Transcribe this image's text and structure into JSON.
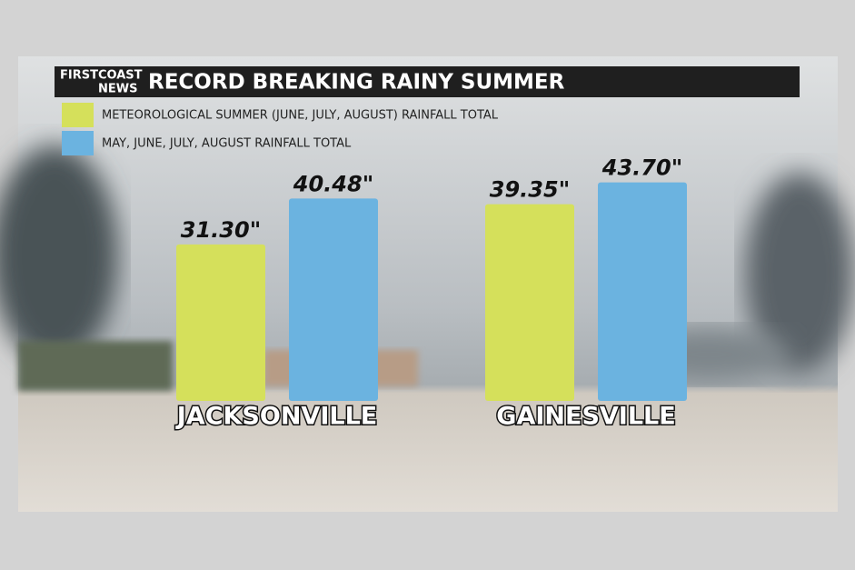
{
  "chart_data": {
    "type": "bar",
    "title": "RECORD BREAKING RAINY SUMMER",
    "brand": [
      "FIRSTCOAST",
      "NEWS"
    ],
    "categories": [
      "JACKSONVILLE",
      "GAINESVILLE"
    ],
    "series": [
      {
        "name": "METEOROLOGICAL SUMMER (JUNE, JULY, AUGUST) RAINFALL TOTAL",
        "color": "#d5e05b",
        "values": [
          31.3,
          39.35
        ],
        "value_labels": [
          "31.30\"",
          "39.35\""
        ]
      },
      {
        "name": "MAY, JUNE, JULY, AUGUST RAINFALL TOTAL",
        "color": "#6bb3e0",
        "values": [
          40.48,
          43.7
        ],
        "value_labels": [
          "40.48\"",
          "43.70\""
        ]
      }
    ]
  }
}
